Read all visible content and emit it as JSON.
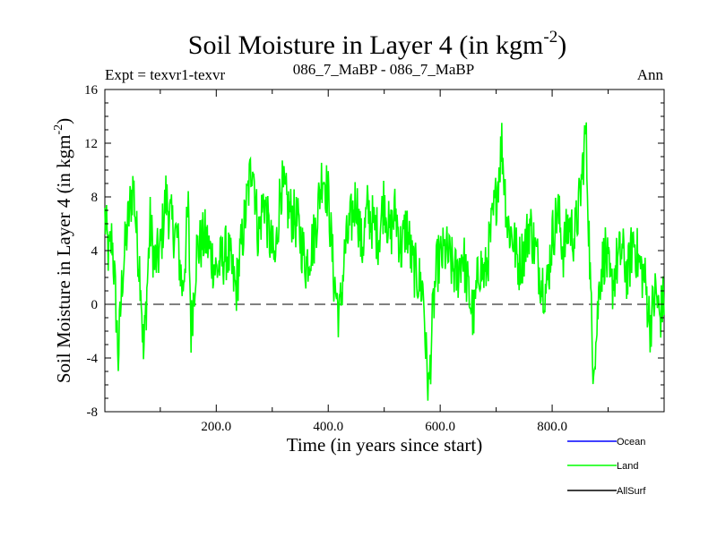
{
  "chart_data": {
    "type": "line",
    "title": "Soil Moisture in Layer 4 (in kgm",
    "title_sup": "-2",
    "title_close": ")",
    "subtitle_left": "Expt = texvr1-texvr",
    "subtitle_center": "086_7_MaBP - 086_7_MaBP",
    "subtitle_right": "Ann",
    "xlabel": "Time (in years since start)",
    "ylabel": "Soil Moisture in Layer 4 (in kgm",
    "ylabel_sup": "-2",
    "ylabel_close": ")",
    "xlim": [
      1,
      1000
    ],
    "ylim": [
      -8,
      16
    ],
    "xticks": [
      200,
      400,
      600,
      800
    ],
    "xtick_labels": [
      "200.0",
      "400.0",
      "600.0",
      "800.0"
    ],
    "yticks": [
      -8,
      -4,
      0,
      4,
      8,
      12,
      16
    ],
    "ytick_labels": [
      "-8",
      "-4",
      "0",
      "4",
      "8",
      "12",
      "16"
    ],
    "reference_line": 0,
    "series": [
      {
        "name": "Land",
        "color": "#00ff00",
        "anchors": [
          [
            1,
            6.5
          ],
          [
            8,
            3.5
          ],
          [
            14,
            5
          ],
          [
            20,
            0.5
          ],
          [
            25,
            -4
          ],
          [
            32,
            2
          ],
          [
            38,
            4.5
          ],
          [
            45,
            7
          ],
          [
            52,
            9
          ],
          [
            58,
            5
          ],
          [
            65,
            2
          ],
          [
            70,
            -4
          ],
          [
            76,
            1
          ],
          [
            82,
            6
          ],
          [
            90,
            3
          ],
          [
            100,
            4
          ],
          [
            110,
            8
          ],
          [
            120,
            6
          ],
          [
            130,
            5
          ],
          [
            140,
            1
          ],
          [
            150,
            7
          ],
          [
            155,
            -2
          ],
          [
            165,
            4
          ],
          [
            180,
            5
          ],
          [
            200,
            2.5
          ],
          [
            220,
            4
          ],
          [
            235,
            1
          ],
          [
            250,
            6
          ],
          [
            265,
            11
          ],
          [
            275,
            5
          ],
          [
            285,
            8
          ],
          [
            295,
            5
          ],
          [
            305,
            3
          ],
          [
            315,
            9
          ],
          [
            330,
            7
          ],
          [
            345,
            6
          ],
          [
            360,
            3
          ],
          [
            375,
            5
          ],
          [
            390,
            10
          ],
          [
            400,
            8
          ],
          [
            410,
            2
          ],
          [
            420,
            -1
          ],
          [
            430,
            4
          ],
          [
            440,
            6
          ],
          [
            450,
            8
          ],
          [
            460,
            4
          ],
          [
            470,
            7
          ],
          [
            480,
            6
          ],
          [
            490,
            5
          ],
          [
            500,
            8
          ],
          [
            510,
            5
          ],
          [
            520,
            7
          ],
          [
            530,
            4
          ],
          [
            540,
            6
          ],
          [
            550,
            3
          ],
          [
            560,
            2
          ],
          [
            570,
            1
          ],
          [
            575,
            -4
          ],
          [
            580,
            -6.5
          ],
          [
            585,
            -2
          ],
          [
            590,
            1
          ],
          [
            595,
            3
          ],
          [
            610,
            4
          ],
          [
            620,
            3
          ],
          [
            630,
            2
          ],
          [
            640,
            4
          ],
          [
            650,
            1
          ],
          [
            660,
            -1
          ],
          [
            670,
            3
          ],
          [
            680,
            2
          ],
          [
            690,
            5
          ],
          [
            700,
            8
          ],
          [
            710,
            12
          ],
          [
            720,
            6
          ],
          [
            730,
            5
          ],
          [
            740,
            3
          ],
          [
            750,
            4
          ],
          [
            760,
            6
          ],
          [
            770,
            4
          ],
          [
            780,
            2
          ],
          [
            790,
            1
          ],
          [
            800,
            5
          ],
          [
            810,
            7
          ],
          [
            820,
            4
          ],
          [
            830,
            6
          ],
          [
            840,
            5
          ],
          [
            850,
            8
          ],
          [
            860,
            13
          ],
          [
            866,
            5
          ],
          [
            872,
            -4
          ],
          [
            878,
            -3
          ],
          [
            885,
            2
          ],
          [
            895,
            4
          ],
          [
            905,
            1
          ],
          [
            915,
            3
          ],
          [
            925,
            4
          ],
          [
            935,
            2
          ],
          [
            945,
            5
          ],
          [
            955,
            3
          ],
          [
            965,
            2
          ],
          [
            975,
            -1.5
          ],
          [
            985,
            1
          ],
          [
            992,
            -1
          ],
          [
            1000,
            0.5
          ]
        ],
        "noise_amplitude": 2.2
      },
      {
        "name": "Ocean",
        "color": "#0000ff"
      },
      {
        "name": "AllSurf",
        "color": "#000000"
      }
    ],
    "legend_position": "bottom-right"
  }
}
